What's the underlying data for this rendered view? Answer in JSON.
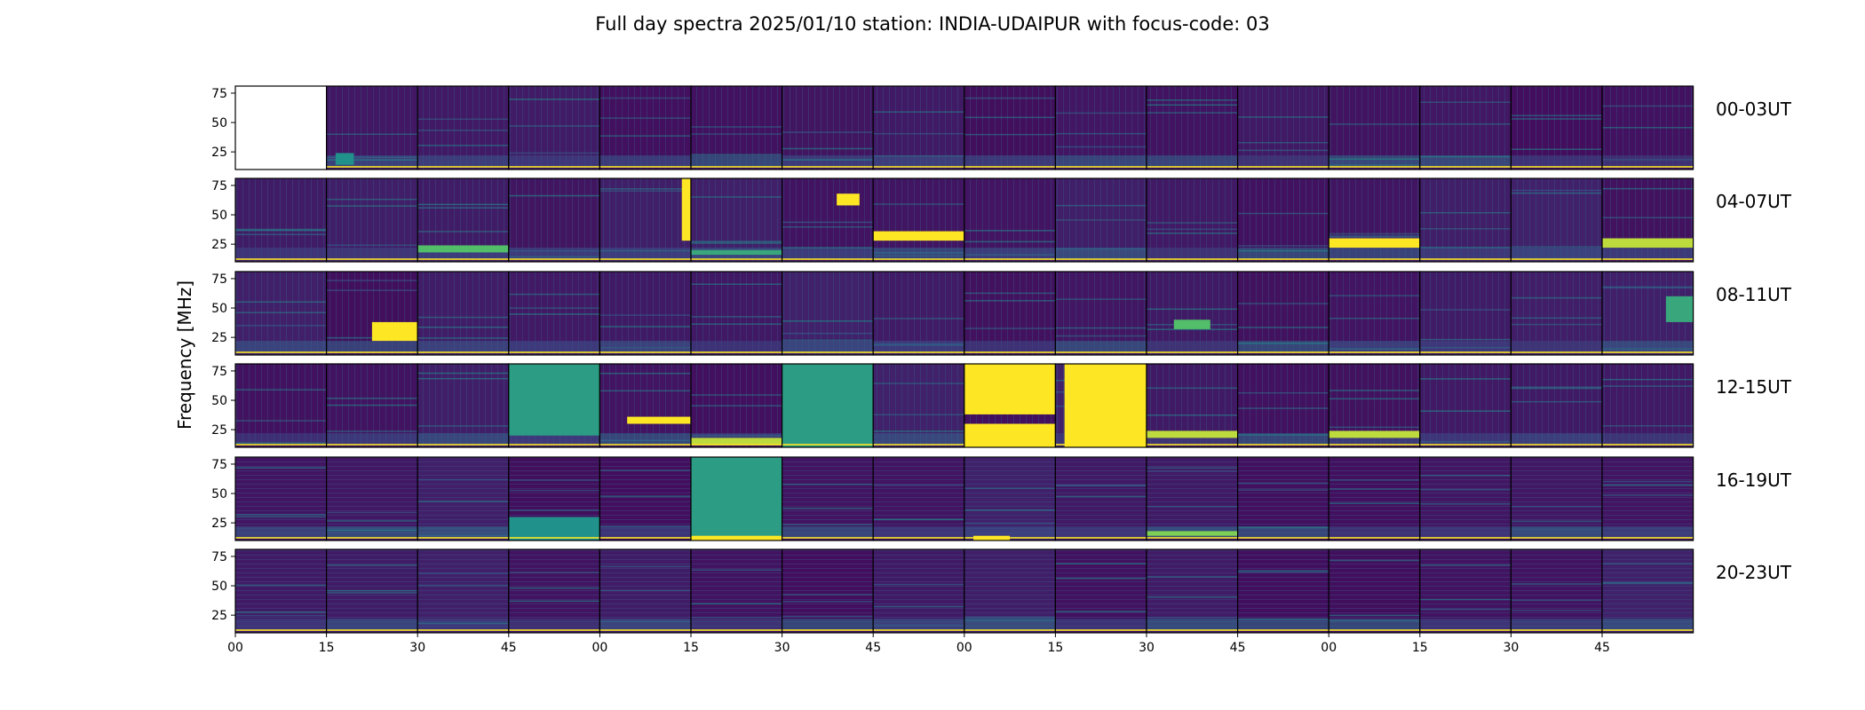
{
  "chart_data": {
    "type": "heatmap",
    "title": "Full day spectra 2025/01/10 station: INDIA-UDAIPUR with focus-code: 03",
    "ylabel": "Frequency [MHz]",
    "ylim": [
      10,
      81
    ],
    "yticks": [
      "25",
      "50",
      "75"
    ],
    "ytick_values": [
      25,
      50,
      75
    ],
    "xticks": [
      "00",
      "15",
      "30",
      "45",
      "00",
      "15",
      "30",
      "45",
      "00",
      "15",
      "30",
      "45",
      "00",
      "15",
      "30",
      "45"
    ],
    "panels_per_row": 16,
    "panel_minutes": 15,
    "colormap": "viridis",
    "grid": false,
    "rows": [
      {
        "label": "00-03UT",
        "no_data_panels": [
          0
        ],
        "bright_features": [
          {
            "panel": 1,
            "f_low": 14,
            "f_high": 24,
            "t_start": 0.1,
            "t_end": 0.3,
            "level": 0.5
          }
        ]
      },
      {
        "label": "04-07UT",
        "bright_features": [
          {
            "panel": 2,
            "f_low": 18,
            "f_high": 24,
            "t_start": 0.0,
            "t_end": 1.0,
            "level": 0.7
          },
          {
            "panel": 4,
            "f_low": 28,
            "f_high": 81,
            "t_start": 0.9,
            "t_end": 1.0,
            "level": 1.0
          },
          {
            "panel": 5,
            "f_low": 16,
            "f_high": 20,
            "t_start": 0.0,
            "t_end": 1.0,
            "level": 0.6
          },
          {
            "panel": 6,
            "f_low": 58,
            "f_high": 68,
            "t_start": 0.6,
            "t_end": 0.85,
            "level": 1.0
          },
          {
            "panel": 7,
            "f_low": 28,
            "f_high": 36,
            "t_start": 0.0,
            "t_end": 1.0,
            "level": 1.0
          },
          {
            "panel": 12,
            "f_low": 22,
            "f_high": 30,
            "t_start": 0.0,
            "t_end": 1.0,
            "level": 1.0
          },
          {
            "panel": 15,
            "f_low": 22,
            "f_high": 30,
            "t_start": 0.0,
            "t_end": 1.0,
            "level": 0.9
          }
        ]
      },
      {
        "label": "08-11UT",
        "bright_features": [
          {
            "panel": 1,
            "f_low": 22,
            "f_high": 38,
            "t_start": 0.5,
            "t_end": 1.0,
            "level": 1.0
          },
          {
            "panel": 10,
            "f_low": 32,
            "f_high": 40,
            "t_start": 0.3,
            "t_end": 0.7,
            "level": 0.7
          },
          {
            "panel": 15,
            "f_low": 38,
            "f_high": 60,
            "t_start": 0.7,
            "t_end": 1.0,
            "level": 0.6
          }
        ]
      },
      {
        "label": "12-15UT",
        "bright_features": [
          {
            "panel": 3,
            "f_low": 20,
            "f_high": 81,
            "t_start": 0.0,
            "t_end": 1.0,
            "level": 0.55
          },
          {
            "panel": 4,
            "f_low": 30,
            "f_high": 36,
            "t_start": 0.3,
            "t_end": 1.0,
            "level": 1.0
          },
          {
            "panel": 5,
            "f_low": 12,
            "f_high": 18,
            "t_start": 0.0,
            "t_end": 1.0,
            "level": 0.9
          },
          {
            "panel": 6,
            "f_low": 10,
            "f_high": 81,
            "t_start": 0.0,
            "t_end": 1.0,
            "level": 0.55
          },
          {
            "panel": 8,
            "f_low": 38,
            "f_high": 81,
            "t_start": 0.0,
            "t_end": 1.0,
            "level": 1.0
          },
          {
            "panel": 8,
            "f_low": 10,
            "f_high": 30,
            "t_start": 0.0,
            "t_end": 1.0,
            "level": 1.0
          },
          {
            "panel": 9,
            "f_low": 10,
            "f_high": 81,
            "t_start": 0.1,
            "t_end": 1.0,
            "level": 1.0
          },
          {
            "panel": 10,
            "f_low": 18,
            "f_high": 24,
            "t_start": 0.0,
            "t_end": 1.0,
            "level": 0.9
          },
          {
            "panel": 12,
            "f_low": 18,
            "f_high": 24,
            "t_start": 0.0,
            "t_end": 1.0,
            "level": 0.9
          }
        ]
      },
      {
        "label": "16-19UT",
        "bright_features": [
          {
            "panel": 3,
            "f_low": 10,
            "f_high": 30,
            "t_start": 0.0,
            "t_end": 1.0,
            "level": 0.5
          },
          {
            "panel": 5,
            "f_low": 10,
            "f_high": 81,
            "t_start": 0.0,
            "t_end": 1.0,
            "level": 0.55
          },
          {
            "panel": 5,
            "f_low": 10,
            "f_high": 14,
            "t_start": 0.0,
            "t_end": 1.0,
            "level": 1.0
          },
          {
            "panel": 8,
            "f_low": 10,
            "f_high": 14,
            "t_start": 0.1,
            "t_end": 0.5,
            "level": 1.0
          },
          {
            "panel": 10,
            "f_low": 14,
            "f_high": 18,
            "t_start": 0.0,
            "t_end": 1.0,
            "level": 0.8
          }
        ]
      },
      {
        "label": "20-23UT",
        "bright_features": []
      }
    ]
  }
}
